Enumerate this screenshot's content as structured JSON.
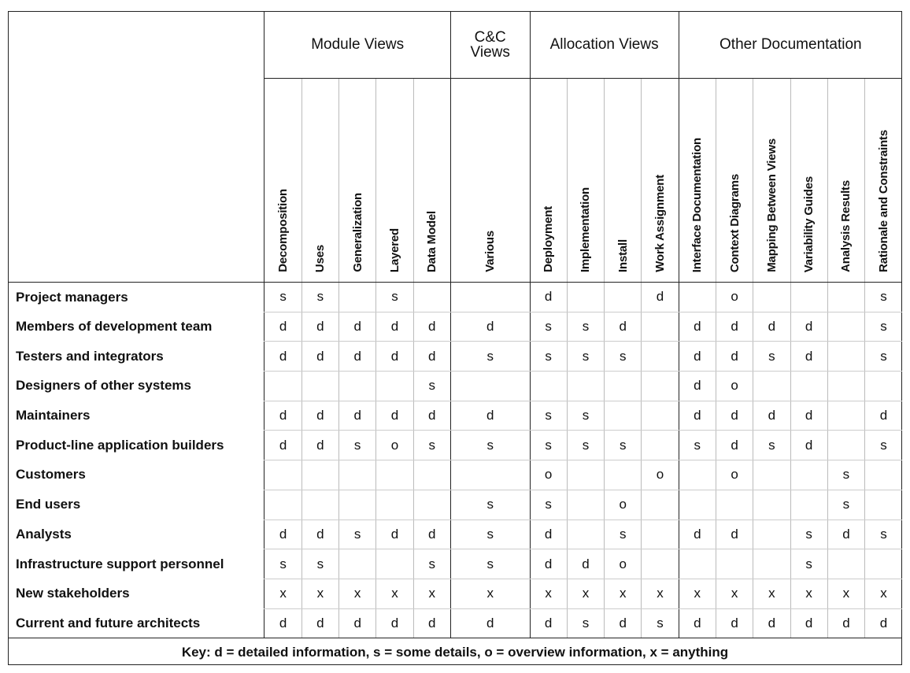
{
  "groups": [
    {
      "label": "Module Views",
      "span": 5
    },
    {
      "label": "C&C\nViews",
      "span": 1
    },
    {
      "label": "Allocation Views",
      "span": 4
    },
    {
      "label": "Other Documentation",
      "span": 6
    }
  ],
  "columns": [
    "Decomposition",
    "Uses",
    "Generalization",
    "Layered",
    "Data Model",
    "Various",
    "Deployment",
    "Implementation",
    "Install",
    "Work Assignment",
    "Interface Documentation",
    "Context Diagrams",
    "Mapping Between Views",
    "Variability Guides",
    "Analysis Results",
    "Rationale and Constraints"
  ],
  "rows": [
    {
      "stakeholder": "Project managers",
      "cells": [
        "s",
        "s",
        "",
        "s",
        "",
        "",
        "d",
        "",
        "",
        "d",
        "",
        "o",
        "",
        "",
        "",
        "s"
      ]
    },
    {
      "stakeholder": "Members of development team",
      "cells": [
        "d",
        "d",
        "d",
        "d",
        "d",
        "d",
        "s",
        "s",
        "d",
        "",
        "d",
        "d",
        "d",
        "d",
        "",
        "s"
      ]
    },
    {
      "stakeholder": "Testers and integrators",
      "cells": [
        "d",
        "d",
        "d",
        "d",
        "d",
        "s",
        "s",
        "s",
        "s",
        "",
        "d",
        "d",
        "s",
        "d",
        "",
        "s"
      ]
    },
    {
      "stakeholder": "Designers of other systems",
      "cells": [
        "",
        "",
        "",
        "",
        "s",
        "",
        "",
        "",
        "",
        "",
        "d",
        "o",
        "",
        "",
        "",
        ""
      ]
    },
    {
      "stakeholder": "Maintainers",
      "cells": [
        "d",
        "d",
        "d",
        "d",
        "d",
        "d",
        "s",
        "s",
        "",
        "",
        "d",
        "d",
        "d",
        "d",
        "",
        "d"
      ]
    },
    {
      "stakeholder": "Product-line application builders",
      "cells": [
        "d",
        "d",
        "s",
        "o",
        "s",
        "s",
        "s",
        "s",
        "s",
        "",
        "s",
        "d",
        "s",
        "d",
        "",
        "s"
      ]
    },
    {
      "stakeholder": "Customers",
      "cells": [
        "",
        "",
        "",
        "",
        "",
        "",
        "o",
        "",
        "",
        "o",
        "",
        "o",
        "",
        "",
        "s",
        ""
      ]
    },
    {
      "stakeholder": "End users",
      "cells": [
        "",
        "",
        "",
        "",
        "",
        "s",
        "s",
        "",
        "o",
        "",
        "",
        "",
        "",
        "",
        "s",
        ""
      ]
    },
    {
      "stakeholder": "Analysts",
      "cells": [
        "d",
        "d",
        "s",
        "d",
        "d",
        "s",
        "d",
        "",
        "s",
        "",
        "d",
        "d",
        "",
        "s",
        "d",
        "s"
      ]
    },
    {
      "stakeholder": "Infrastructure support personnel",
      "cells": [
        "s",
        "s",
        "",
        "",
        "s",
        "s",
        "d",
        "d",
        "o",
        "",
        "",
        "",
        "",
        "s",
        "",
        ""
      ]
    },
    {
      "stakeholder": "New stakeholders",
      "cells": [
        "x",
        "x",
        "x",
        "x",
        "x",
        "x",
        "x",
        "x",
        "x",
        "x",
        "x",
        "x",
        "x",
        "x",
        "x",
        "x"
      ]
    },
    {
      "stakeholder": "Current and future architects",
      "cells": [
        "d",
        "d",
        "d",
        "d",
        "d",
        "d",
        "d",
        "s",
        "d",
        "s",
        "d",
        "d",
        "d",
        "d",
        "d",
        "d"
      ]
    }
  ],
  "key": "Key: d = detailed information, s = some details, o = overview information, x = anything"
}
